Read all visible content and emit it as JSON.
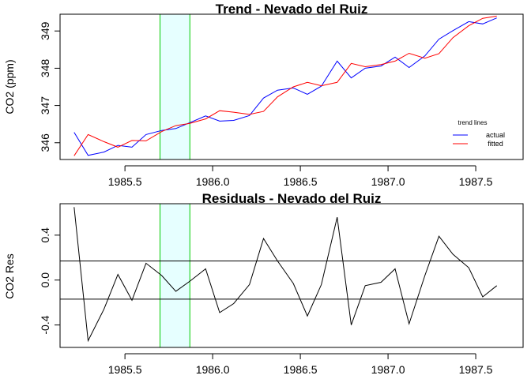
{
  "chart_data": [
    {
      "type": "line",
      "title": "Trend -  Nevado del Ruiz",
      "xlabel": "",
      "ylabel": "CO2 (ppm)",
      "xlim": [
        1985.13,
        1987.77
      ],
      "ylim": [
        345.55,
        349.45
      ],
      "xticks": [
        1985.5,
        1986.0,
        1986.5,
        1987.0,
        1987.5
      ],
      "xtick_labels": [
        "1985.5",
        "1986.0",
        "1986.5",
        "1987.0",
        "1987.5"
      ],
      "yticks": [
        346,
        347,
        348,
        349
      ],
      "ytick_labels": [
        "346",
        "347",
        "348",
        "349"
      ],
      "highlight_band": [
        1985.7,
        1985.87
      ],
      "legend": {
        "title": "trend lines",
        "position": "bottom-right"
      },
      "x": [
        1985.21,
        1985.29,
        1985.38,
        1985.46,
        1985.54,
        1985.62,
        1985.71,
        1985.79,
        1985.87,
        1985.96,
        1986.04,
        1986.12,
        1986.21,
        1986.29,
        1986.37,
        1986.46,
        1986.54,
        1986.62,
        1986.71,
        1986.79,
        1986.87,
        1986.96,
        1987.04,
        1987.12,
        1987.21,
        1987.29,
        1987.37,
        1987.46,
        1987.54,
        1987.62
      ],
      "series": [
        {
          "name": "actual",
          "color": "#0000ff",
          "values": [
            346.28,
            345.66,
            345.75,
            345.93,
            345.88,
            346.22,
            346.33,
            346.38,
            346.54,
            346.72,
            346.58,
            346.6,
            346.73,
            347.2,
            347.41,
            347.47,
            347.3,
            347.52,
            348.19,
            347.74,
            348.0,
            348.06,
            348.3,
            348.02,
            348.33,
            348.78,
            349.01,
            349.25,
            349.19,
            349.35
          ]
        },
        {
          "name": "fitted",
          "color": "#ff0000",
          "values": [
            345.65,
            346.22,
            346.03,
            345.88,
            346.06,
            346.05,
            346.3,
            346.46,
            346.52,
            346.64,
            346.86,
            346.82,
            346.76,
            346.84,
            347.23,
            347.5,
            347.62,
            347.53,
            347.62,
            348.13,
            348.04,
            348.1,
            348.19,
            348.4,
            348.27,
            348.39,
            348.82,
            349.14,
            349.34,
            349.4
          ]
        }
      ]
    },
    {
      "type": "line",
      "title": "Residuals -  Nevado del Ruiz",
      "xlabel": "",
      "ylabel": "CO2 Res",
      "xlim": [
        1985.13,
        1987.77
      ],
      "ylim": [
        -0.6,
        0.68
      ],
      "xticks": [
        1985.5,
        1986.0,
        1986.5,
        1987.0,
        1987.5
      ],
      "xtick_labels": [
        "1985.5",
        "1986.0",
        "1986.5",
        "1987.0",
        "1987.5"
      ],
      "yticks": [
        -0.4,
        0.0,
        0.4
      ],
      "ytick_labels": [
        "-0.4",
        "0.0",
        "0.4"
      ],
      "highlight_band": [
        1985.7,
        1985.87
      ],
      "reference_lines": [
        0.17,
        -0.17
      ],
      "x": [
        1985.21,
        1985.29,
        1985.38,
        1985.46,
        1985.54,
        1985.62,
        1985.71,
        1985.79,
        1985.87,
        1985.96,
        1986.04,
        1986.12,
        1986.21,
        1986.29,
        1986.37,
        1986.46,
        1986.54,
        1986.62,
        1986.71,
        1986.79,
        1986.87,
        1986.96,
        1987.04,
        1987.12,
        1987.21,
        1987.29,
        1987.37,
        1987.46,
        1987.54,
        1987.62
      ],
      "series": [
        {
          "name": "",
          "color": "#000000",
          "values": [
            0.65,
            -0.54,
            -0.26,
            0.05,
            -0.18,
            0.15,
            0.04,
            -0.1,
            -0.01,
            0.1,
            -0.29,
            -0.21,
            -0.04,
            0.37,
            0.17,
            -0.03,
            -0.32,
            -0.04,
            0.56,
            -0.4,
            -0.05,
            -0.02,
            0.1,
            -0.39,
            0.04,
            0.39,
            0.23,
            0.11,
            -0.15,
            -0.05
          ]
        }
      ]
    }
  ]
}
